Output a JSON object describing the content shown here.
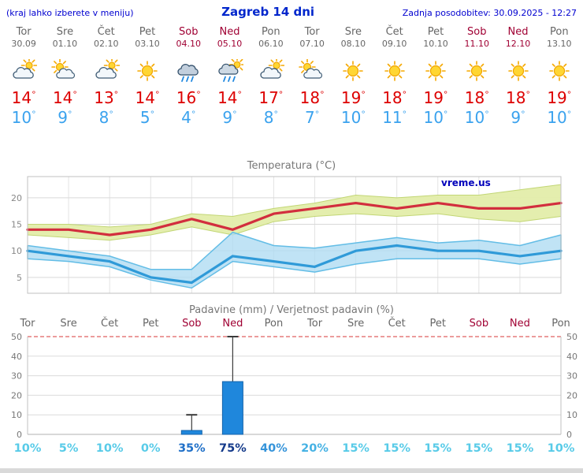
{
  "header": {
    "menu_note": "(kraj lahko izberete v meniju)",
    "title": "Zagreb 14 dni",
    "last_update": "Zadnja posodobitev: 30.09.2025 - 12:27"
  },
  "units": {
    "degree": "°"
  },
  "colors": {
    "link_blue": "#0000d0",
    "title_blue": "#0026cc",
    "weekday_gray": "#666666",
    "weekend_maroon": "#a00033",
    "tmax_red": "#dd0000",
    "tmin_blue": "#3aa2ee",
    "watermark_blue": "#0000bb"
  },
  "days": [
    {
      "name": "Tor",
      "date": "30.09",
      "weekend": false,
      "icon": "mostly-cloudy",
      "tmax": "14",
      "tmin": "10"
    },
    {
      "name": "Sre",
      "date": "01.10",
      "weekend": false,
      "icon": "partly-cloudy",
      "tmax": "14",
      "tmin": "9"
    },
    {
      "name": "Čet",
      "date": "02.10",
      "weekend": false,
      "icon": "mostly-cloudy",
      "tmax": "13",
      "tmin": "8"
    },
    {
      "name": "Pet",
      "date": "03.10",
      "weekend": false,
      "icon": "sunny",
      "tmax": "14",
      "tmin": "5"
    },
    {
      "name": "Sob",
      "date": "04.10",
      "weekend": true,
      "icon": "rain",
      "tmax": "16",
      "tmin": "4"
    },
    {
      "name": "Ned",
      "date": "05.10",
      "weekend": true,
      "icon": "rain-sun",
      "tmax": "14",
      "tmin": "9"
    },
    {
      "name": "Pon",
      "date": "06.10",
      "weekend": false,
      "icon": "mostly-cloudy",
      "tmax": "17",
      "tmin": "8"
    },
    {
      "name": "Tor",
      "date": "07.10",
      "weekend": false,
      "icon": "partly-cloudy",
      "tmax": "18",
      "tmin": "7"
    },
    {
      "name": "Sre",
      "date": "08.10",
      "weekend": false,
      "icon": "sunny",
      "tmax": "19",
      "tmin": "10"
    },
    {
      "name": "Čet",
      "date": "09.10",
      "weekend": false,
      "icon": "sunny",
      "tmax": "18",
      "tmin": "11"
    },
    {
      "name": "Pet",
      "date": "10.10",
      "weekend": false,
      "icon": "sunny",
      "tmax": "19",
      "tmin": "10"
    },
    {
      "name": "Sob",
      "date": "11.10",
      "weekend": true,
      "icon": "sunny",
      "tmax": "18",
      "tmin": "10"
    },
    {
      "name": "Ned",
      "date": "12.10",
      "weekend": true,
      "icon": "sunny",
      "tmax": "18",
      "tmin": "9"
    },
    {
      "name": "Pon",
      "date": "13.10",
      "weekend": false,
      "icon": "sunny",
      "tmax": "19",
      "tmin": "10"
    }
  ],
  "chart_data": [
    {
      "type": "line",
      "title": "Temperatura (°C)",
      "watermark": "vreme.us",
      "x_days": [
        "Tor",
        "Sre",
        "Čet",
        "Pet",
        "Sob",
        "Ned",
        "Pon",
        "Tor",
        "Sre",
        "Čet",
        "Pet",
        "Sob",
        "Ned",
        "Pon"
      ],
      "ylim": [
        2,
        24
      ],
      "yticks": [
        5,
        10,
        15,
        20
      ],
      "grid": true,
      "series": [
        {
          "name": "max-temperature",
          "color": "#d22e3e",
          "values": [
            14,
            14,
            13,
            14,
            16,
            14,
            17,
            18,
            19,
            18,
            19,
            18,
            18,
            19
          ]
        },
        {
          "name": "min-temperature",
          "color": "#2f9ad8",
          "values": [
            10,
            9,
            8,
            5,
            4,
            9,
            8,
            7,
            10,
            11,
            10,
            10,
            9,
            10
          ]
        }
      ],
      "bands": [
        {
          "name": "max-range",
          "fill": "#e3edaa",
          "edge": "#c2d675",
          "upper": [
            15,
            15,
            14.5,
            15,
            17,
            16.5,
            18,
            19,
            20.5,
            20,
            20.5,
            20.5,
            21.5,
            22.5
          ],
          "lower": [
            13,
            12.5,
            12,
            13,
            14.5,
            13,
            15.5,
            16.5,
            17,
            16.5,
            17,
            16,
            15.5,
            16.5
          ]
        },
        {
          "name": "min-range",
          "fill": "#aedbf2",
          "edge": "#63bde6",
          "upper": [
            11,
            10,
            9,
            6.5,
            6.5,
            13.5,
            11,
            10.5,
            11.5,
            12.5,
            11.5,
            12,
            11,
            13
          ],
          "lower": [
            8.5,
            8,
            7,
            4.5,
            3,
            8,
            7,
            6,
            7.5,
            8.5,
            8.5,
            8.5,
            7.5,
            8.5
          ]
        }
      ]
    },
    {
      "type": "bar",
      "title": "Padavine (mm) / Verjetnost padavin (%)",
      "categories": [
        "Tor",
        "Sre",
        "Čet",
        "Pet",
        "Sob",
        "Ned",
        "Pon",
        "Tor",
        "Sre",
        "Čet",
        "Pet",
        "Sob",
        "Ned",
        "Pon"
      ],
      "weekend": [
        false,
        false,
        false,
        false,
        true,
        true,
        false,
        false,
        false,
        false,
        false,
        true,
        true,
        false
      ],
      "precip_mm": [
        0,
        0,
        0,
        0,
        2,
        27,
        0,
        0,
        0,
        0,
        0,
        0,
        0,
        0
      ],
      "precip_max_mm": [
        0,
        0,
        0,
        0,
        10,
        50,
        0,
        0,
        0,
        0,
        0,
        0,
        0,
        0
      ],
      "probability_pct": [
        10,
        5,
        10,
        0,
        35,
        75,
        40,
        20,
        15,
        15,
        15,
        15,
        15,
        10
      ],
      "probability_labels": [
        "10%",
        "5%",
        "10%",
        "0%",
        "35%",
        "75%",
        "40%",
        "20%",
        "15%",
        "15%",
        "15%",
        "15%",
        "15%",
        "10%"
      ],
      "probability_colors": [
        "#58cbe8",
        "#58cbe8",
        "#58cbe8",
        "#58cbe8",
        "#2070c8",
        "#143a8a",
        "#3694da",
        "#46b2e4",
        "#58cbe8",
        "#58cbe8",
        "#58cbe8",
        "#58cbe8",
        "#58cbe8",
        "#58cbe8"
      ],
      "ylim": [
        0,
        50
      ],
      "yticks": [
        0,
        10,
        20,
        30,
        40,
        50
      ],
      "bar_color": "#1f87dc",
      "bar_edge": "#1463ab",
      "top_line_color": "#e06060"
    }
  ]
}
